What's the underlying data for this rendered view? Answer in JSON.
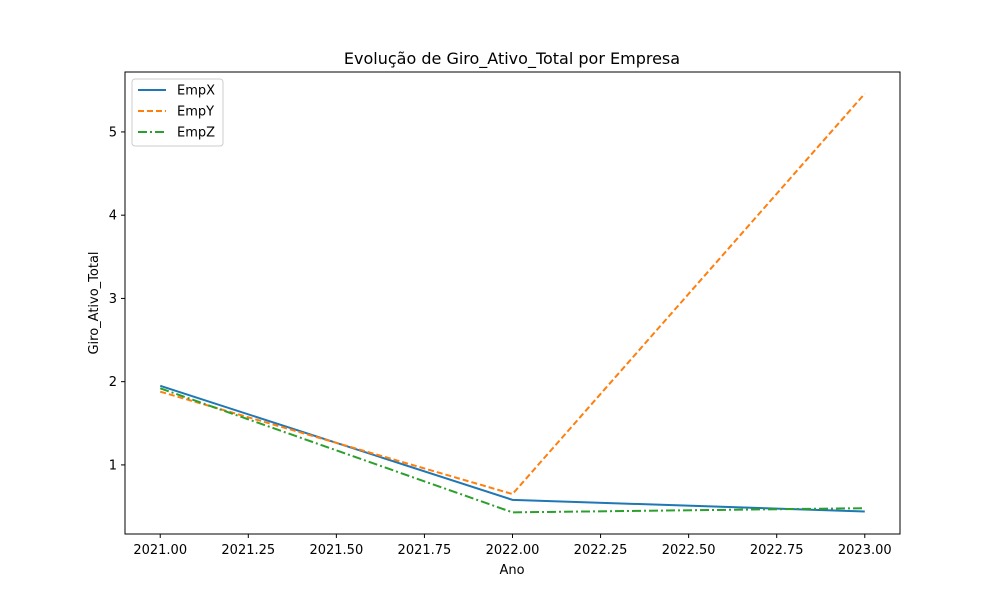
{
  "chart_data": {
    "type": "line",
    "title": "Evolução de Giro_Ativo_Total por Empresa",
    "xlabel": "Ano",
    "ylabel": "Giro_Ativo_Total",
    "x": [
      2021,
      2022,
      2023
    ],
    "xlim": [
      2020.9,
      2023.1
    ],
    "ylim": [
      0.17,
      5.72
    ],
    "xticks": [
      2021.0,
      2021.25,
      2021.5,
      2021.75,
      2022.0,
      2022.25,
      2022.5,
      2022.75,
      2023.0
    ],
    "xtick_labels": [
      "2021.00",
      "2021.25",
      "2021.50",
      "2021.75",
      "2022.00",
      "2022.25",
      "2022.50",
      "2022.75",
      "2023.00"
    ],
    "yticks": [
      1,
      2,
      3,
      4,
      5
    ],
    "ytick_labels": [
      "1",
      "2",
      "3",
      "4",
      "5"
    ],
    "grid": false,
    "legend_position": "top-left",
    "series": [
      {
        "name": "EmpX",
        "values": [
          1.95,
          0.58,
          0.44
        ],
        "color": "#1f77b4",
        "dash": "solid"
      },
      {
        "name": "EmpY",
        "values": [
          1.88,
          0.65,
          5.46
        ],
        "color": "#ff7f0e",
        "dash": "dashed"
      },
      {
        "name": "EmpZ",
        "values": [
          1.92,
          0.43,
          0.48
        ],
        "color": "#2ca02c",
        "dash": "dashdot"
      }
    ]
  }
}
